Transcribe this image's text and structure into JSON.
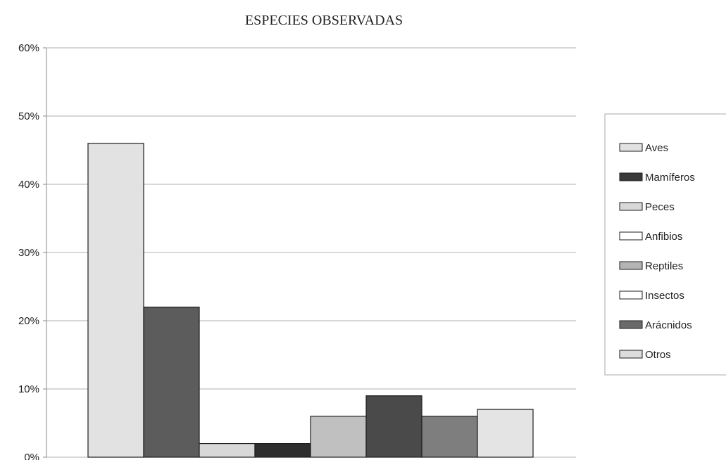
{
  "chart_data": {
    "type": "bar",
    "title": "ESPECIES OBSERVADAS",
    "xlabel": "",
    "ylabel": "",
    "ylim": [
      0,
      0.6
    ],
    "y_ticks": [
      "0%",
      "10%",
      "20%",
      "30%",
      "40%",
      "50%",
      "60%"
    ],
    "grid": true,
    "legend_position": "right",
    "categories": [
      "Aves",
      "Mamíferos",
      "Peces",
      "Anfibios",
      "Reptiles",
      "Insectos",
      "Arácnidos",
      "Otros"
    ],
    "values": [
      0.46,
      0.22,
      0.02,
      0.02,
      0.06,
      0.09,
      0.06,
      0.07
    ],
    "colors": [
      "#e2e2e2",
      "#5c5c5c",
      "#d8d8d8",
      "#2e2e2e",
      "#c0c0c0",
      "#4a4a4a",
      "#7e7e7e",
      "#e4e4e4"
    ],
    "legend": [
      {
        "label": "Aves",
        "color": "#e2e2e2"
      },
      {
        "label": "Mamíferos",
        "color": "#3a3a3a"
      },
      {
        "label": "Peces",
        "color": "#d8d8d8"
      },
      {
        "label": "Anfibios",
        "color": "#ffffff"
      },
      {
        "label": "Reptiles",
        "color": "#b4b4b4"
      },
      {
        "label": "Insectos",
        "color": "#ffffff"
      },
      {
        "label": "Arácnidos",
        "color": "#6a6a6a"
      },
      {
        "label": "Otros",
        "color": "#dcdcdc"
      }
    ]
  }
}
